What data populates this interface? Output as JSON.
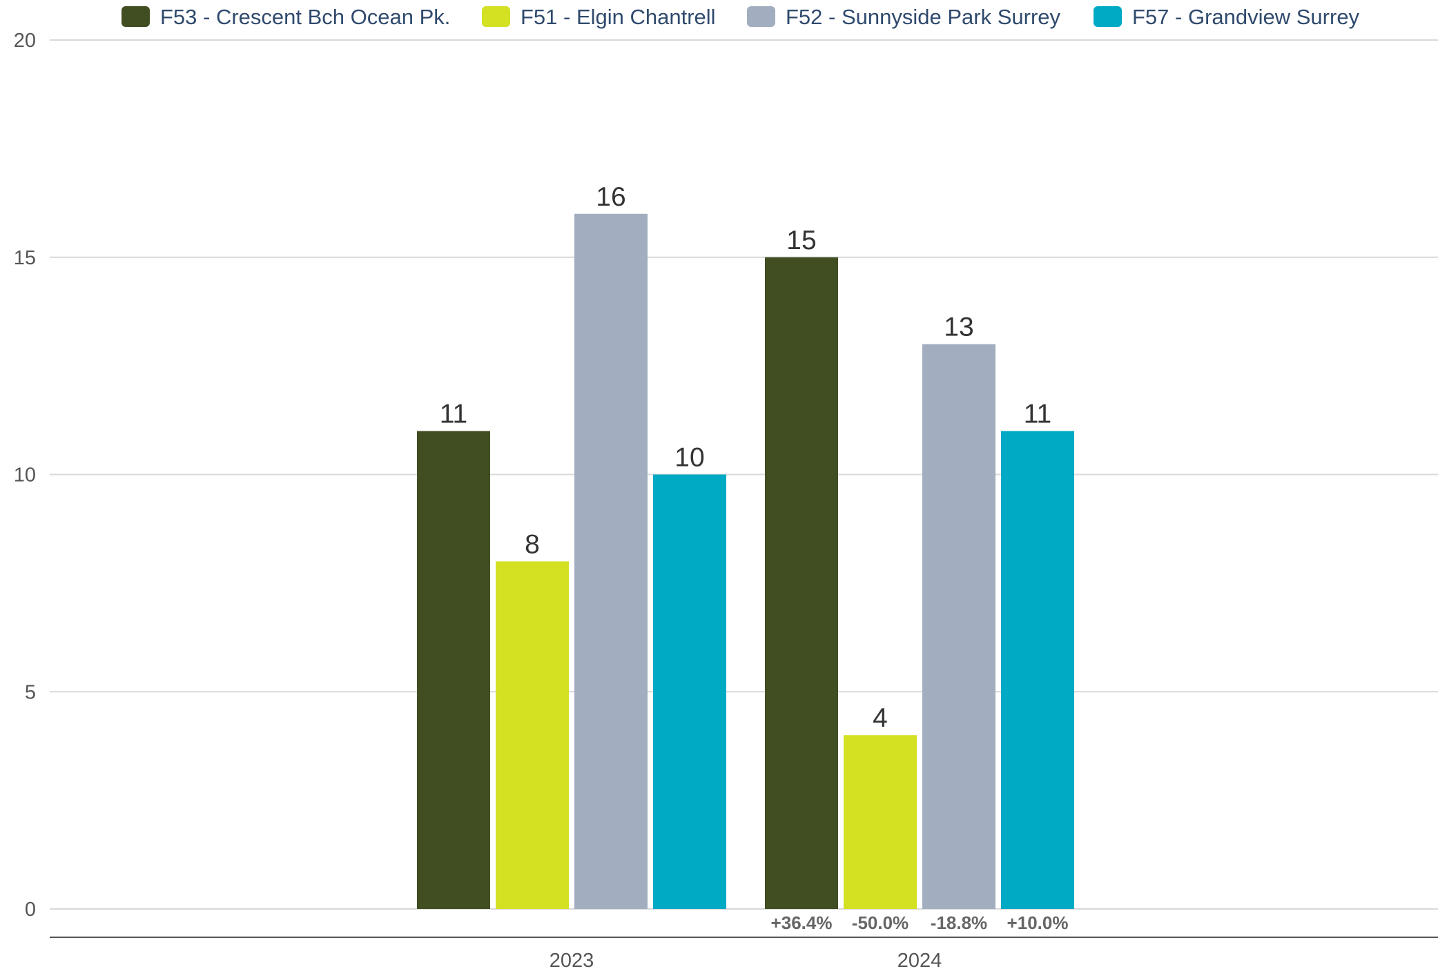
{
  "chart_data": {
    "type": "bar",
    "categories": [
      "2023",
      "2024"
    ],
    "series": [
      {
        "name": "F53 - Crescent Bch Ocean Pk.",
        "values": [
          11,
          15
        ],
        "color": "#404e22"
      },
      {
        "name": "F51 - Elgin Chantrell",
        "values": [
          8,
          4
        ],
        "color": "#d4e022"
      },
      {
        "name": "F52 - Sunnyside Park Surrey",
        "values": [
          16,
          13
        ],
        "color": "#a2aebf"
      },
      {
        "name": "F57 - Grandview Surrey",
        "values": [
          10,
          11
        ],
        "color": "#00a9c4"
      }
    ],
    "changes": {
      "2024": [
        "+36.4%",
        "-50.0%",
        "-18.8%",
        "+10.0%"
      ]
    },
    "yticks": [
      0,
      5,
      10,
      15,
      20
    ],
    "ylim": [
      0,
      20
    ],
    "grid": true,
    "legend_position": "top",
    "title": "",
    "xlabel": "",
    "ylabel": ""
  }
}
